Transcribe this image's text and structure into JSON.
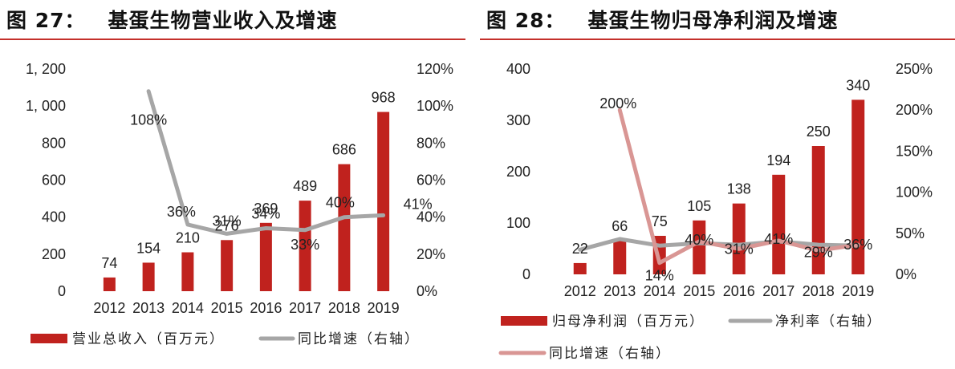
{
  "chart_data": [
    {
      "type": "bar+line",
      "title_number": "图 27：",
      "title": "基蛋生物营业收入及增速",
      "categories": [
        "2012",
        "2013",
        "2014",
        "2015",
        "2016",
        "2017",
        "2018",
        "2019"
      ],
      "series": [
        {
          "name": "营业总收入（百万元）",
          "kind": "bar",
          "axis": "left",
          "color": "#c0221e",
          "values": [
            74,
            154,
            210,
            276,
            369,
            489,
            686,
            968
          ],
          "labels": [
            "74",
            "154",
            "210",
            "276",
            "369",
            "489",
            "686",
            "968"
          ]
        },
        {
          "name": "同比增速（右轴）",
          "kind": "line",
          "axis": "right",
          "color": "#a6a6a6",
          "values": [
            null,
            108,
            36,
            31,
            34,
            33,
            40,
            41
          ],
          "labels": [
            "",
            "108%",
            "36%",
            "31%",
            "34%",
            "33%",
            "40%",
            "41%"
          ]
        }
      ],
      "y_left": {
        "min": 0,
        "max": 1200,
        "step": 200,
        "ticks": [
          "0",
          "200",
          "400",
          "600",
          "800",
          "1, 000",
          "1, 200"
        ]
      },
      "y_right": {
        "min": 0,
        "max": 120,
        "step": 20,
        "ticks": [
          "0%",
          "20%",
          "40%",
          "60%",
          "80%",
          "100%",
          "120%"
        ]
      },
      "legend": [
        "营业总收入（百万元）",
        "同比增速（右轴）"
      ]
    },
    {
      "type": "bar+line",
      "title_number": "图 28：",
      "title": "基蛋生物归母净利润及增速",
      "categories": [
        "2012",
        "2013",
        "2014",
        "2015",
        "2016",
        "2017",
        "2018",
        "2019"
      ],
      "series": [
        {
          "name": "归母净利润（百万元）",
          "kind": "bar",
          "axis": "left",
          "color": "#c0221e",
          "values": [
            22,
            66,
            75,
            105,
            138,
            194,
            250,
            340
          ],
          "labels": [
            "22",
            "66",
            "75",
            "105",
            "138",
            "194",
            "250",
            "340"
          ]
        },
        {
          "name": "净利率（右轴）",
          "kind": "line",
          "axis": "right",
          "color": "#a6a6a6",
          "values": [
            30,
            43,
            35,
            38,
            36,
            40,
            36,
            35
          ],
          "labels": [
            "",
            "",
            "",
            "",
            "",
            "",
            "",
            ""
          ]
        },
        {
          "name": "同比增速（右轴）",
          "kind": "line",
          "axis": "right",
          "color": "#d99694",
          "values": [
            null,
            200,
            14,
            40,
            31,
            41,
            29,
            36
          ],
          "labels": [
            "",
            "200%",
            "14%",
            "40%",
            "31%",
            "41%",
            "29%",
            "36%"
          ]
        }
      ],
      "y_left": {
        "min": 0,
        "max": 400,
        "step": 100,
        "ticks": [
          "0",
          "100",
          "200",
          "300",
          "400"
        ]
      },
      "y_right": {
        "min": 0,
        "max": 250,
        "step": 50,
        "ticks": [
          "0%",
          "50%",
          "100%",
          "150%",
          "200%",
          "250%"
        ]
      },
      "legend": [
        "归母净利润（百万元）",
        "净利率（右轴）",
        "同比增速（右轴）"
      ]
    }
  ]
}
